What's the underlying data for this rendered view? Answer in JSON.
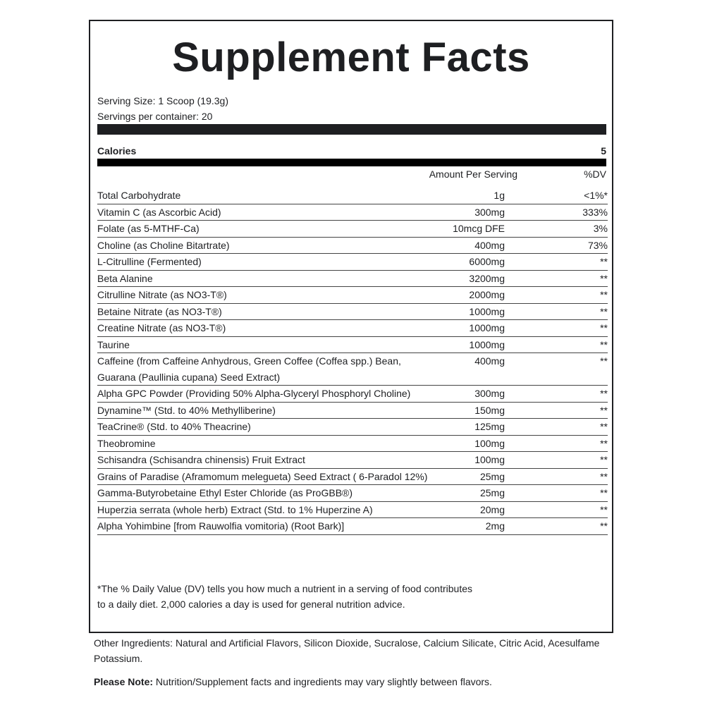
{
  "title": "Supplement Facts",
  "serving_size": "Serving Size: 1 Scoop (19.3g)",
  "servings_per_container": "Servings per container: 20",
  "calories": {
    "label": "Calories",
    "value": "5"
  },
  "columns": {
    "amount": "Amount Per Serving",
    "dv": "%DV"
  },
  "rows": [
    {
      "name": "Total Carbohydrate",
      "amount": "1g",
      "dv": "<1%*"
    },
    {
      "name": "Vitamin C (as Ascorbic Acid)",
      "amount": "300mg",
      "dv": "333%"
    },
    {
      "name": "Folate (as 5-MTHF-Ca)",
      "amount": "10mcg DFE",
      "dv": "3%"
    },
    {
      "name": "Choline (as Choline Bitartrate)",
      "amount": "400mg",
      "dv": "73%"
    },
    {
      "name": "L-Citrulline (Fermented)",
      "amount": "6000mg",
      "dv": "**"
    },
    {
      "name": "Beta Alanine",
      "amount": "3200mg",
      "dv": "**"
    },
    {
      "name": "Citrulline Nitrate (as NO3-T®)",
      "amount": "2000mg",
      "dv": "**"
    },
    {
      "name": "Betaine Nitrate (as NO3-T®)",
      "amount": "1000mg",
      "dv": "**"
    },
    {
      "name": "Creatine Nitrate (as NO3-T®)",
      "amount": "1000mg",
      "dv": "**"
    },
    {
      "name": "Taurine",
      "amount": "1000mg",
      "dv": "**"
    },
    {
      "name": "Caffeine (from Caffeine Anhydrous, Green Coffee (Coffea spp.) Bean, Guarana (Paullinia cupana) Seed Extract)",
      "amount": "400mg",
      "dv": "**"
    },
    {
      "name": "Alpha GPC Powder (Providing 50% Alpha-Glyceryl Phosphoryl Choline)",
      "amount": "300mg",
      "dv": "**"
    },
    {
      "name": "Dynamine™ (Std. to 40% Methylliberine)",
      "amount": "150mg",
      "dv": "**"
    },
    {
      "name": "TeaCrine® (Std. to 40% Theacrine)",
      "amount": "125mg",
      "dv": "**"
    },
    {
      "name": "Theobromine",
      "amount": "100mg",
      "dv": "**"
    },
    {
      "name": "Schisandra (Schisandra chinensis) Fruit Extract",
      "amount": "100mg",
      "dv": "**"
    },
    {
      "name": "Grains of Paradise (Aframomum melegueta) Seed Extract ( 6-Paradol 12%)",
      "amount": "25mg",
      "dv": "**"
    },
    {
      "name": "Gamma-Butyrobetaine Ethyl Ester Chloride (as ProGBB®)",
      "amount": "25mg",
      "dv": "**"
    },
    {
      "name": "Huperzia serrata (whole herb) Extract (Std. to 1% Huperzine A)",
      "amount": "20mg",
      "dv": "**"
    },
    {
      "name": "Alpha Yohimbine [from Rauwolfia vomitoria) (Root Bark)]",
      "amount": "2mg",
      "dv": "**"
    }
  ],
  "footnote": "*The % Daily Value (DV) tells you how much a nutrient in a serving of food contributes to a daily diet. 2,000 calories a day is used for general nutrition advice.",
  "other_ingredients": "Other Ingredients: Natural and Artificial Flavors, Silicon Dioxide, Sucralose, Calcium Silicate, Citric Acid, Acesulfame Potassium.",
  "please_note": {
    "label": "Please Note:",
    "text": " Nutrition/Supplement facts and ingredients may vary slightly between flavors."
  }
}
